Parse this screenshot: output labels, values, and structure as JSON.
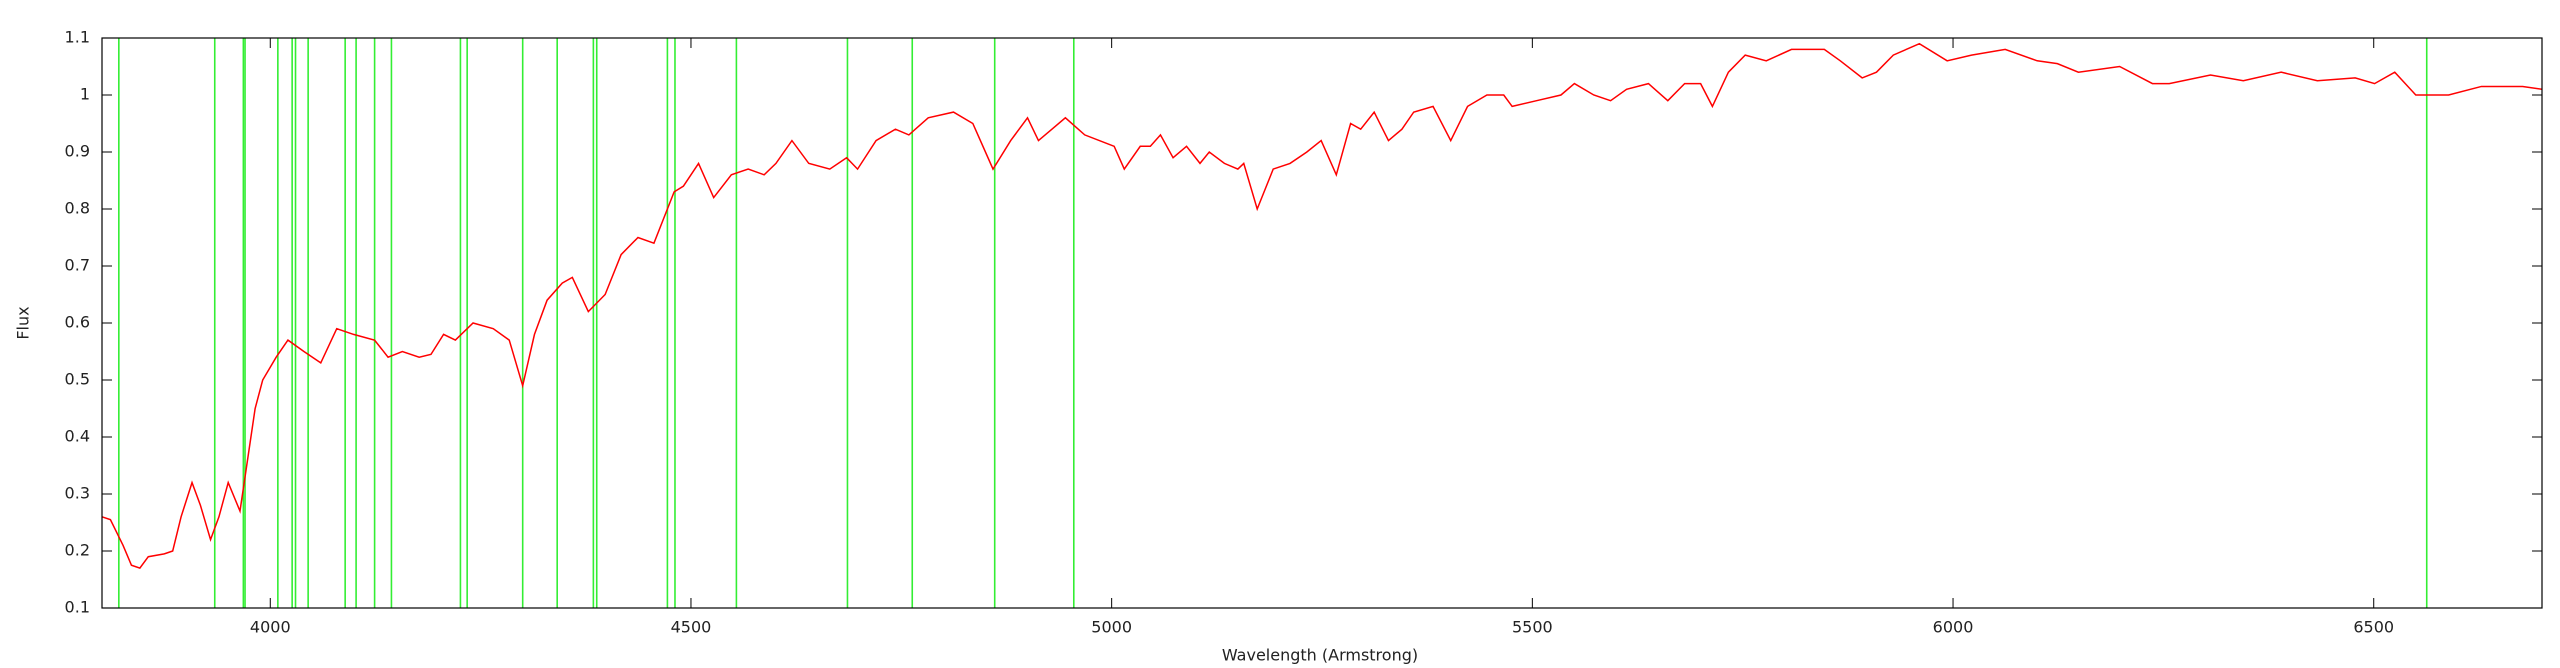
{
  "chart_data": {
    "type": "line",
    "xlabel": "Wavelength (Armstrong)",
    "ylabel": "Flux",
    "xlim": [
      3800,
      6700
    ],
    "ylim": [
      0.1,
      1.1
    ],
    "xticks": [
      4000,
      4500,
      5000,
      5500,
      6000,
      6500
    ],
    "yticks": [
      0.1,
      0.2,
      0.3,
      0.4,
      0.5,
      0.6,
      0.7,
      0.8,
      0.9,
      1,
      1.1
    ],
    "x": [
      3800,
      3810,
      3825,
      3835,
      3845,
      3855,
      3874,
      3884,
      3894,
      3907,
      3917,
      3929,
      3939,
      3950,
      3964,
      3972,
      3982,
      3991,
      4007,
      4021,
      4040,
      4060,
      4079,
      4099,
      4124,
      4140,
      4157,
      4177,
      4191,
      4206,
      4220,
      4241,
      4265,
      4284,
      4300,
      4314,
      4329,
      4347,
      4359,
      4378,
      4398,
      4417,
      4437,
      4456,
      4480,
      4491,
      4509,
      4527,
      4548,
      4568,
      4587,
      4601,
      4620,
      4640,
      4665,
      4685,
      4698,
      4720,
      4743,
      4759,
      4782,
      4812,
      4835,
      4859,
      4880,
      4900,
      4913,
      4945,
      4968,
      5003,
      5015,
      5034,
      5046,
      5058,
      5073,
      5089,
      5105,
      5116,
      5134,
      5150,
      5157,
      5173,
      5192,
      5212,
      5232,
      5249,
      5267,
      5284,
      5296,
      5312,
      5329,
      5345,
      5359,
      5382,
      5403,
      5423,
      5446,
      5466,
      5476,
      5505,
      5534,
      5550,
      5573,
      5593,
      5612,
      5638,
      5661,
      5681,
      5700,
      5714,
      5733,
      5753,
      5778,
      5808,
      5847,
      5866,
      5892,
      5909,
      5929,
      5960,
      5993,
      6022,
      6062,
      6100,
      6124,
      6149,
      6198,
      6237,
      6257,
      6306,
      6345,
      6390,
      6433,
      6478,
      6501,
      6525,
      6550,
      6589,
      6628,
      6677,
      6700
    ],
    "series": [
      {
        "color": "#ff0000",
        "values": [
          0.26,
          0.255,
          0.21,
          0.175,
          0.17,
          0.19,
          0.195,
          0.2,
          0.26,
          0.32,
          0.28,
          0.22,
          0.26,
          0.32,
          0.27,
          0.35,
          0.45,
          0.5,
          0.54,
          0.57,
          0.55,
          0.53,
          0.59,
          0.58,
          0.57,
          0.54,
          0.55,
          0.54,
          0.545,
          0.58,
          0.57,
          0.6,
          0.59,
          0.57,
          0.49,
          0.58,
          0.64,
          0.67,
          0.68,
          0.62,
          0.65,
          0.72,
          0.75,
          0.74,
          0.83,
          0.84,
          0.88,
          0.82,
          0.86,
          0.87,
          0.86,
          0.88,
          0.92,
          0.88,
          0.87,
          0.89,
          0.87,
          0.92,
          0.94,
          0.93,
          0.96,
          0.97,
          0.95,
          0.87,
          0.92,
          0.96,
          0.92,
          0.96,
          0.93,
          0.91,
          0.87,
          0.91,
          0.91,
          0.93,
          0.89,
          0.91,
          0.88,
          0.9,
          0.88,
          0.87,
          0.88,
          0.8,
          0.87,
          0.88,
          0.9,
          0.92,
          0.86,
          0.95,
          0.94,
          0.97,
          0.92,
          0.94,
          0.97,
          0.98,
          0.92,
          0.98,
          1.0,
          1.0,
          0.98,
          0.99,
          1.0,
          1.02,
          1.0,
          0.99,
          1.01,
          1.02,
          0.99,
          1.02,
          1.02,
          0.98,
          1.04,
          1.07,
          1.06,
          1.08,
          1.08,
          1.06,
          1.03,
          1.04,
          1.07,
          1.09,
          1.06,
          1.07,
          1.08,
          1.06,
          1.055,
          1.04,
          1.05,
          1.02,
          1.02,
          1.035,
          1.025,
          1.04,
          1.025,
          1.03,
          1.02,
          1.04,
          1.0,
          1.0,
          1.015,
          1.015,
          1.01
        ]
      }
    ],
    "markers": {
      "color": "#33ee33",
      "x": [
        3820,
        3934,
        3968,
        3970,
        4009,
        4026,
        4030,
        4045,
        4089,
        4102,
        4124,
        4144,
        4226,
        4234,
        4300,
        4341,
        4384,
        4388,
        4472,
        4481,
        4554,
        4686,
        4763,
        4861,
        4955,
        6563
      ]
    }
  }
}
